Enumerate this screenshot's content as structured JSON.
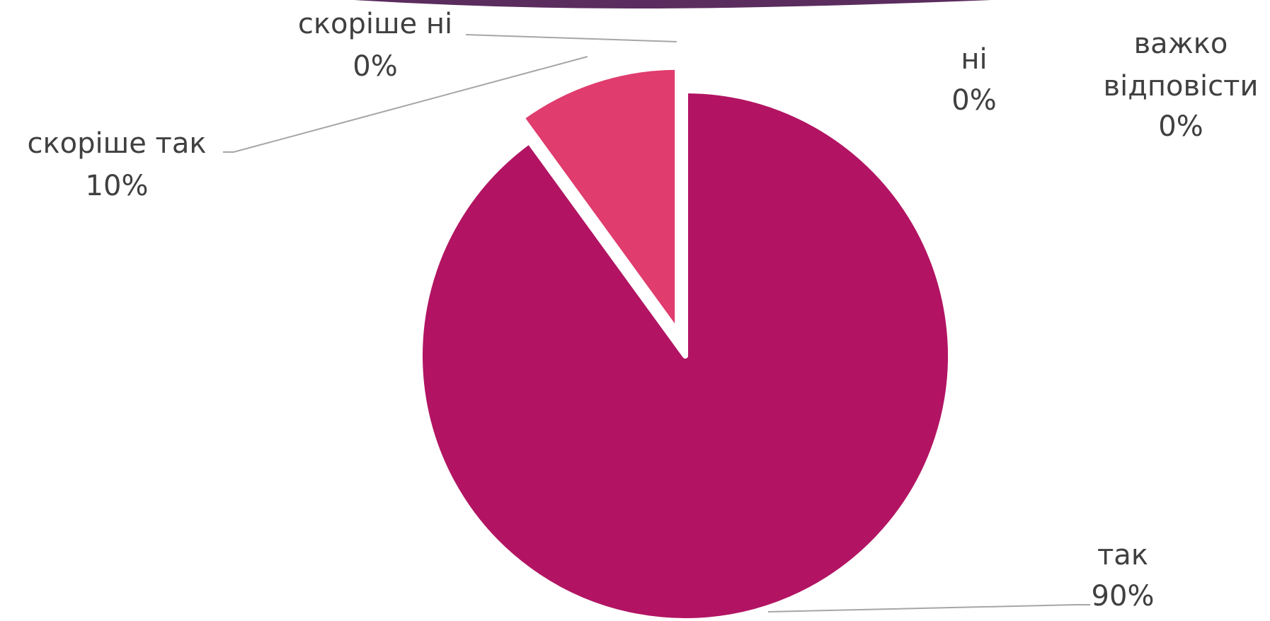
{
  "chart_data": {
    "type": "pie",
    "title": "",
    "slices": [
      {
        "name": "так",
        "value": 90,
        "label": "90%",
        "color": "#b21463"
      },
      {
        "name": "скоріше так",
        "value": 10,
        "label": "10%",
        "color": "#e03c6e"
      },
      {
        "name": "скоріше ні",
        "value": 0,
        "label": "0%",
        "color": "#c2185b"
      },
      {
        "name": "ні",
        "value": 0,
        "label": "0%",
        "color": "#ad1457"
      },
      {
        "name": "важко відповісти",
        "value": 0,
        "label": "0%",
        "color": "#880e4f"
      }
    ],
    "label_lines": {
      "vazhko": [
        "важко",
        "відповісти"
      ]
    },
    "decor": {
      "top_band_color": "#5b2c5e"
    }
  }
}
